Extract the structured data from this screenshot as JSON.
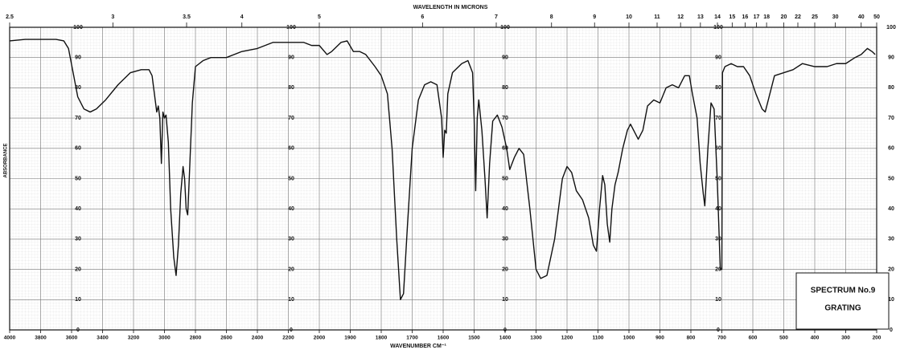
{
  "chart_data": {
    "type": "line",
    "title": "WAVELENGTH IN MICRONS",
    "xlabel": "WAVENUMBER CM⁻¹",
    "ylabel": "ABSORBANCE",
    "annotations": [
      "SPECTRUM No.9",
      "GRATING"
    ],
    "color": "#111111",
    "grid": true,
    "xlim": [
      4000,
      200
    ],
    "xticks": [
      4000,
      3800,
      3600,
      3400,
      3200,
      3000,
      2800,
      2600,
      2400,
      2200,
      2000,
      1900,
      1800,
      1700,
      1600,
      1500,
      1400,
      1300,
      1200,
      1100,
      1000,
      900,
      800,
      700,
      600,
      500,
      400,
      300,
      200
    ],
    "x2ticks": [
      2.5,
      3,
      3.5,
      4,
      5,
      6,
      7,
      8,
      9,
      10,
      11,
      12,
      13,
      14,
      15,
      16,
      17,
      18,
      20,
      22,
      25,
      30,
      40,
      50
    ],
    "ylim": [
      0,
      100
    ],
    "yticks": [
      0,
      10,
      20,
      30,
      40,
      50,
      60,
      70,
      80,
      90,
      100
    ],
    "x": [
      4000,
      3900,
      3700,
      3650,
      3620,
      3590,
      3560,
      3520,
      3480,
      3440,
      3380,
      3300,
      3220,
      3150,
      3100,
      3080,
      3060,
      3050,
      3040,
      3030,
      3020,
      3010,
      3000,
      2990,
      2975,
      2960,
      2940,
      2925,
      2910,
      2895,
      2880,
      2870,
      2860,
      2850,
      2840,
      2820,
      2800,
      2750,
      2700,
      2600,
      2500,
      2400,
      2300,
      2200,
      2100,
      2050,
      2000,
      1975,
      1960,
      1930,
      1910,
      1890,
      1870,
      1850,
      1820,
      1800,
      1780,
      1765,
      1750,
      1738,
      1728,
      1715,
      1700,
      1680,
      1660,
      1640,
      1620,
      1605,
      1600,
      1595,
      1590,
      1585,
      1570,
      1540,
      1520,
      1505,
      1500,
      1495,
      1490,
      1485,
      1475,
      1465,
      1458,
      1450,
      1440,
      1425,
      1410,
      1395,
      1385,
      1370,
      1355,
      1340,
      1320,
      1300,
      1285,
      1265,
      1240,
      1215,
      1200,
      1185,
      1170,
      1150,
      1130,
      1115,
      1105,
      1095,
      1085,
      1078,
      1070,
      1062,
      1055,
      1045,
      1035,
      1020,
      1005,
      995,
      985,
      970,
      955,
      940,
      920,
      900,
      880,
      860,
      840,
      820,
      805,
      795,
      780,
      770,
      760,
      755,
      745,
      735,
      725,
      715,
      705,
      700,
      698,
      690,
      670,
      650,
      630,
      610,
      590,
      570,
      560,
      545,
      530,
      500,
      470,
      440,
      400,
      360,
      330,
      300,
      270,
      250,
      230,
      215,
      205
    ],
    "values": [
      95.5,
      96,
      96,
      95.5,
      93,
      85,
      77,
      73,
      72,
      73,
      76,
      81,
      85,
      86,
      86,
      84,
      76,
      72,
      74,
      70,
      55,
      72,
      70,
      71,
      62,
      40,
      24,
      18,
      28,
      45,
      54,
      50,
      40,
      38,
      50,
      75,
      87,
      89,
      90,
      90,
      92,
      93,
      95,
      95,
      95,
      94,
      94,
      91,
      92,
      95,
      95.5,
      92,
      92,
      91,
      87,
      84,
      78,
      60,
      30,
      10,
      12,
      35,
      60,
      76,
      81,
      82,
      81,
      70,
      57,
      66,
      65,
      78,
      85,
      88,
      89,
      85,
      70,
      46,
      70,
      76,
      66,
      50,
      37,
      55,
      69,
      71,
      67,
      60,
      53,
      57,
      60,
      58,
      40,
      20,
      17,
      18,
      30,
      50,
      54,
      52,
      46,
      43,
      37,
      28,
      26,
      40,
      51,
      48,
      35,
      29,
      40,
      48,
      52,
      60,
      66,
      68,
      66,
      63,
      66,
      74,
      76,
      75,
      80,
      81,
      80,
      84,
      84,
      78,
      70,
      55,
      45,
      41,
      60,
      75,
      73,
      50,
      20,
      20,
      85,
      87,
      88,
      87,
      87,
      84,
      78,
      73,
      72,
      78,
      84,
      85,
      86,
      88,
      87,
      87,
      88,
      88,
      90,
      91,
      93,
      92,
      91
    ]
  }
}
